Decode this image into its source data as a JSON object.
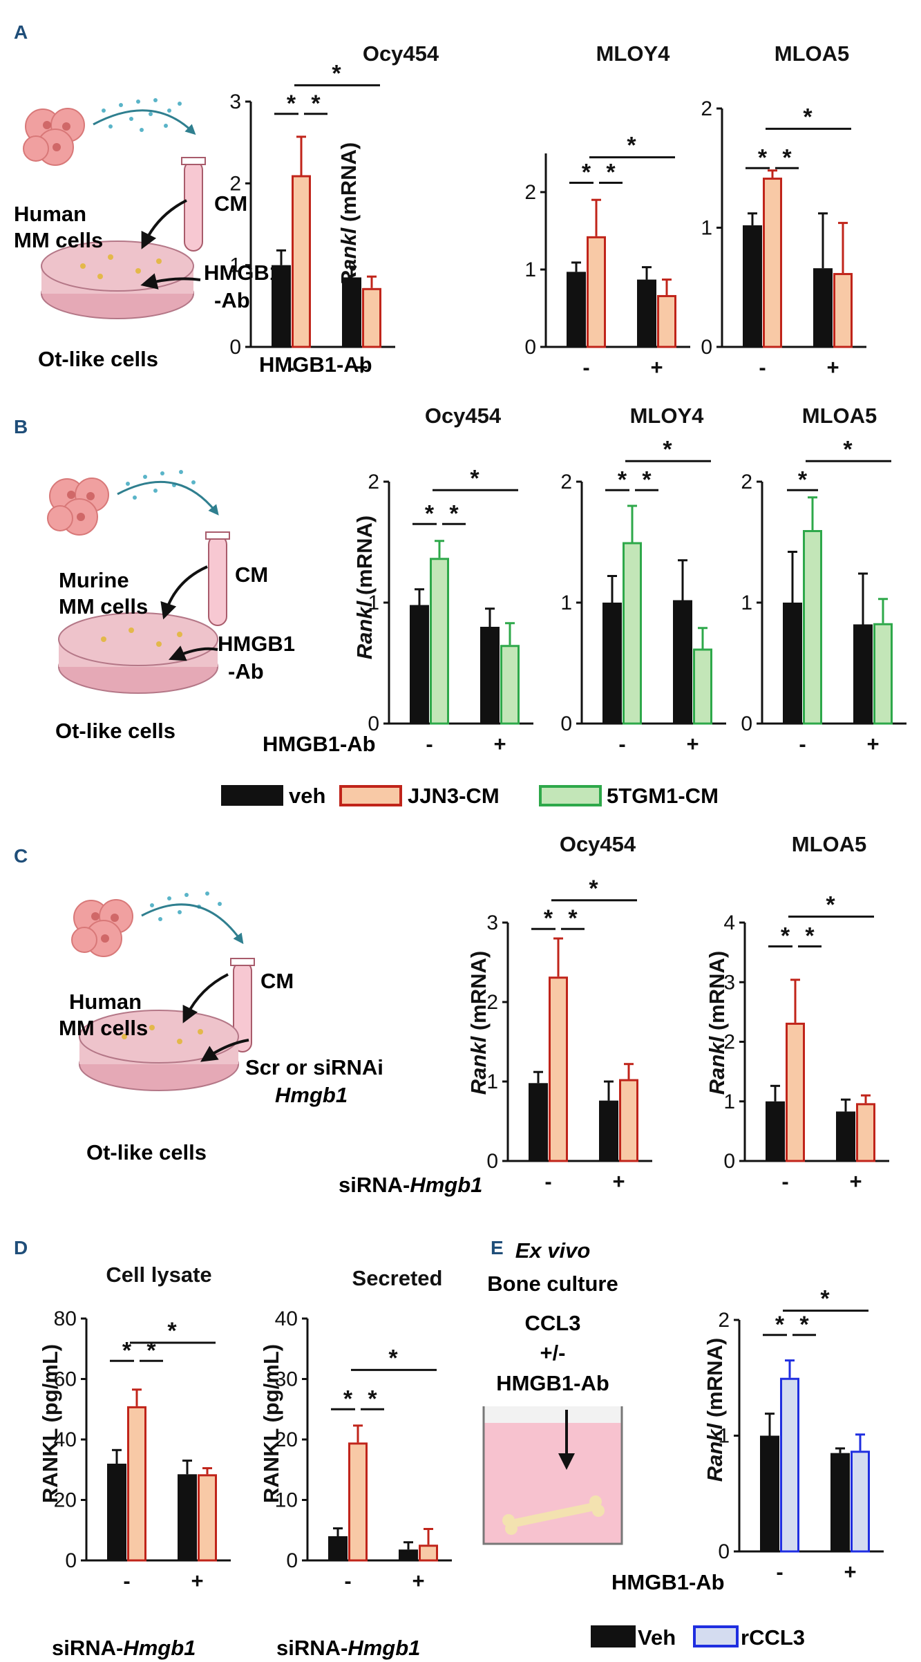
{
  "colors": {
    "black": "#111111",
    "red": "#c0241a",
    "peach": "#f8c9a6",
    "green": "#2ea84a",
    "lightgreen": "#c3e6b8",
    "blue": "#1f2ee0",
    "lightblue": "#d4dcf0",
    "panel_letter": "#1f4e79",
    "cell_pink": "#f0a0a0",
    "dish_pink": "#eec3cb",
    "medium_pink": "#f7c8d2",
    "dot_teal": "#5ab4c8",
    "arrow_teal": "#2f7f8f",
    "bone": "#f3e2b0"
  },
  "icons": [
    "cancer-cells-icon",
    "conditioned-medium-tube-icon",
    "culture-dish-icon",
    "bone-culture-well-icon",
    "bone-icon",
    "arrow-icon"
  ],
  "panels": {
    "A": {
      "letter": "A",
      "schematic": {
        "cells": "Human\nMM cells",
        "cm": "CM",
        "ab": "HMGB1\n-Ab",
        "dish": "Ot-like cells"
      },
      "treatment": "HMGB1-Ab",
      "ticks": [
        "-",
        "+"
      ]
    },
    "B": {
      "letter": "B",
      "schematic": {
        "cells": "Murine\nMM cells",
        "cm": "CM",
        "ab": "HMGB1\n-Ab",
        "dish": "Ot-like cells"
      },
      "treatment": "HMGB1-Ab",
      "ticks": [
        "-",
        "+"
      ],
      "legend": [
        "veh",
        "JJN3-CM",
        "5TGM1-CM"
      ]
    },
    "C": {
      "letter": "C",
      "schematic": {
        "cells": "Human\nMM cells",
        "cm": "CM",
        "ab": "Scr or siRNAi",
        "ab_italic": "Hmgb1",
        "dish": "Ot-like cells"
      },
      "treatment": "siRNA-",
      "treatment_italic": "Hmgb1",
      "ticks": [
        "-",
        "+"
      ]
    },
    "D": {
      "letter": "D",
      "treatment": "siRNA-",
      "treatment_italic": "Hmgb1",
      "ticks": [
        "-",
        "+"
      ]
    },
    "E": {
      "letter": "E",
      "schematic": {
        "title_italic": "Ex vivo",
        "title": "Bone culture",
        "line1": "CCL3",
        "line2": "+/-",
        "line3": "HMGB1-Ab"
      },
      "treatment": "HMGB1-Ab",
      "ticks": [
        "-",
        "+"
      ],
      "legend": [
        "Veh",
        "rCCL3"
      ]
    }
  },
  "chart_data": [
    {
      "id": "A-Ocy454",
      "type": "bar",
      "title": "Ocy454",
      "ylabel_italic": "Rankl",
      "ylabel": " (mRNA)",
      "yticks": [
        0,
        1,
        2,
        3
      ],
      "ylim": [
        0,
        3
      ],
      "scheme": "red",
      "groups": [
        {
          "label": "-",
          "bars": [
            {
              "v": 1.0,
              "e": 0.18
            },
            {
              "v": 2.1,
              "e": 0.47
            }
          ]
        },
        {
          "label": "+",
          "bars": [
            {
              "v": 0.85,
              "e": 0.13
            },
            {
              "v": 0.72,
              "e": 0.14
            }
          ]
        }
      ],
      "sig": [
        {
          "type": "pair",
          "g": 0,
          "level": 2.85
        },
        {
          "type": "cross",
          "level": 3.2
        }
      ]
    },
    {
      "id": "A-MLOY4",
      "type": "bar",
      "title": "MLOY4",
      "ylabel": "",
      "yticks": [
        0,
        1,
        2
      ],
      "ylim": [
        0,
        2.5
      ],
      "scheme": "red",
      "groups": [
        {
          "label": "-",
          "bars": [
            {
              "v": 0.97,
              "e": 0.12
            },
            {
              "v": 1.43,
              "e": 0.47
            }
          ]
        },
        {
          "label": "+",
          "bars": [
            {
              "v": 0.87,
              "e": 0.16
            },
            {
              "v": 0.67,
              "e": 0.2
            }
          ]
        }
      ],
      "sig": [
        {
          "type": "pair",
          "g": 0,
          "level": 2.12
        },
        {
          "type": "cross",
          "level": 2.45
        }
      ]
    },
    {
      "id": "A-MLOA5",
      "type": "bar",
      "title": "MLOA5",
      "ylabel": "",
      "yticks": [
        0,
        1,
        2
      ],
      "ylim": [
        0,
        2
      ],
      "scheme": "red",
      "groups": [
        {
          "label": "-",
          "bars": [
            {
              "v": 1.02,
              "e": 0.1
            },
            {
              "v": 1.42,
              "e": 0.06
            }
          ]
        },
        {
          "label": "+",
          "bars": [
            {
              "v": 0.66,
              "e": 0.46
            },
            {
              "v": 0.62,
              "e": 0.42
            }
          ]
        }
      ],
      "sig": [
        {
          "type": "pair",
          "g": 0,
          "level": 1.5
        },
        {
          "type": "cross",
          "level": 1.83
        }
      ]
    },
    {
      "id": "B-Ocy454",
      "type": "bar",
      "title": "Ocy454",
      "ylabel_italic": "Rankl",
      "ylabel": " (mRNA)",
      "yticks": [
        0,
        1,
        2
      ],
      "ylim": [
        0,
        2
      ],
      "scheme": "green",
      "groups": [
        {
          "label": "-",
          "bars": [
            {
              "v": 0.98,
              "e": 0.13
            },
            {
              "v": 1.37,
              "e": 0.14
            }
          ]
        },
        {
          "label": "+",
          "bars": [
            {
              "v": 0.8,
              "e": 0.15
            },
            {
              "v": 0.65,
              "e": 0.18
            }
          ]
        }
      ],
      "sig": [
        {
          "type": "pair",
          "g": 0,
          "level": 1.65
        },
        {
          "type": "cross",
          "level": 1.93
        }
      ]
    },
    {
      "id": "B-MLOY4",
      "type": "bar",
      "title": "MLOY4",
      "ylabel": "",
      "yticks": [
        0,
        1,
        2
      ],
      "ylim": [
        0,
        2
      ],
      "scheme": "green",
      "groups": [
        {
          "label": "-",
          "bars": [
            {
              "v": 1.0,
              "e": 0.22
            },
            {
              "v": 1.5,
              "e": 0.3
            }
          ]
        },
        {
          "label": "+",
          "bars": [
            {
              "v": 1.02,
              "e": 0.33
            },
            {
              "v": 0.62,
              "e": 0.17
            }
          ]
        }
      ],
      "sig": [
        {
          "type": "pair",
          "g": 0,
          "level": 1.93
        },
        {
          "type": "cross",
          "level": 2.17
        }
      ]
    },
    {
      "id": "B-MLOA5",
      "type": "bar",
      "title": "MLOA5",
      "ylabel": "",
      "yticks": [
        0,
        1,
        2
      ],
      "ylim": [
        0,
        2
      ],
      "scheme": "green",
      "groups": [
        {
          "label": "-",
          "bars": [
            {
              "v": 1.0,
              "e": 0.42
            },
            {
              "v": 1.6,
              "e": 0.27
            }
          ]
        },
        {
          "label": "+",
          "bars": [
            {
              "v": 0.82,
              "e": 0.42
            },
            {
              "v": 0.83,
              "e": 0.2
            }
          ]
        }
      ],
      "sig": [
        {
          "type": "single",
          "level": 1.93
        },
        {
          "type": "cross",
          "level": 2.17
        }
      ]
    },
    {
      "id": "C-Ocy454",
      "type": "bar",
      "title": "Ocy454",
      "ylabel_italic": "Rankl",
      "ylabel": " (mRNA)",
      "yticks": [
        0,
        1,
        2,
        3
      ],
      "ylim": [
        0,
        3
      ],
      "scheme": "red",
      "groups": [
        {
          "label": "-",
          "bars": [
            {
              "v": 0.98,
              "e": 0.14
            },
            {
              "v": 2.32,
              "e": 0.48
            }
          ]
        },
        {
          "label": "+",
          "bars": [
            {
              "v": 0.76,
              "e": 0.24
            },
            {
              "v": 1.03,
              "e": 0.19
            }
          ]
        }
      ],
      "sig": [
        {
          "type": "pair",
          "g": 0,
          "level": 2.92
        },
        {
          "type": "cross",
          "level": 3.28
        }
      ]
    },
    {
      "id": "C-MLOA5",
      "type": "bar",
      "title": "MLOA5",
      "ylabel_italic": "Rankl",
      "ylabel": " (mRNA)",
      "yticks": [
        0,
        1,
        2,
        3,
        4
      ],
      "ylim": [
        0,
        4
      ],
      "scheme": "red",
      "groups": [
        {
          "label": "-",
          "bars": [
            {
              "v": 1.0,
              "e": 0.26
            },
            {
              "v": 2.32,
              "e": 0.72
            }
          ]
        },
        {
          "label": "+",
          "bars": [
            {
              "v": 0.83,
              "e": 0.2
            },
            {
              "v": 0.97,
              "e": 0.13
            }
          ]
        }
      ],
      "sig": [
        {
          "type": "pair",
          "g": 0,
          "level": 3.6
        },
        {
          "type": "cross",
          "level": 4.1
        }
      ]
    },
    {
      "id": "D-lysate",
      "type": "bar",
      "title": "Cell lysate",
      "ylabel": "RANKL (pg/mL)",
      "yticks": [
        0,
        20,
        40,
        60,
        80
      ],
      "ylim": [
        0,
        80
      ],
      "scheme": "red",
      "groups": [
        {
          "label": "-",
          "bars": [
            {
              "v": 32,
              "e": 4.5
            },
            {
              "v": 51,
              "e": 5.5
            }
          ]
        },
        {
          "label": "+",
          "bars": [
            {
              "v": 28.5,
              "e": 4.5
            },
            {
              "v": 28.5,
              "e": 2.0
            }
          ]
        }
      ],
      "sig": [
        {
          "type": "pair",
          "g": 0,
          "level": 66
        },
        {
          "type": "cross",
          "level": 72
        }
      ]
    },
    {
      "id": "D-secreted",
      "type": "bar",
      "title": "Secreted",
      "ylabel": "RANKL (pg/mL)",
      "yticks": [
        0,
        10,
        20,
        30,
        40
      ],
      "ylim": [
        0,
        40
      ],
      "scheme": "red",
      "groups": [
        {
          "label": "-",
          "bars": [
            {
              "v": 4,
              "e": 1.3
            },
            {
              "v": 19.5,
              "e": 2.8
            }
          ]
        },
        {
          "label": "+",
          "bars": [
            {
              "v": 1.8,
              "e": 1.2
            },
            {
              "v": 2.6,
              "e": 2.6
            }
          ]
        }
      ],
      "sig": [
        {
          "type": "pair",
          "g": 0,
          "level": 25
        },
        {
          "type": "cross",
          "level": 31.5
        }
      ]
    },
    {
      "id": "E-bone",
      "type": "bar",
      "title": "",
      "ylabel_italic": "Rankl",
      "ylabel": " (mRNA)",
      "yticks": [
        0,
        1,
        2
      ],
      "ylim": [
        0,
        2
      ],
      "scheme": "blue",
      "groups": [
        {
          "label": "-",
          "bars": [
            {
              "v": 1.0,
              "e": 0.19
            },
            {
              "v": 1.5,
              "e": 0.15
            }
          ]
        },
        {
          "label": "+",
          "bars": [
            {
              "v": 0.85,
              "e": 0.04
            },
            {
              "v": 0.87,
              "e": 0.14
            }
          ]
        }
      ],
      "sig": [
        {
          "type": "pair",
          "g": 0,
          "level": 1.87
        },
        {
          "type": "cross",
          "level": 2.08
        }
      ]
    }
  ]
}
